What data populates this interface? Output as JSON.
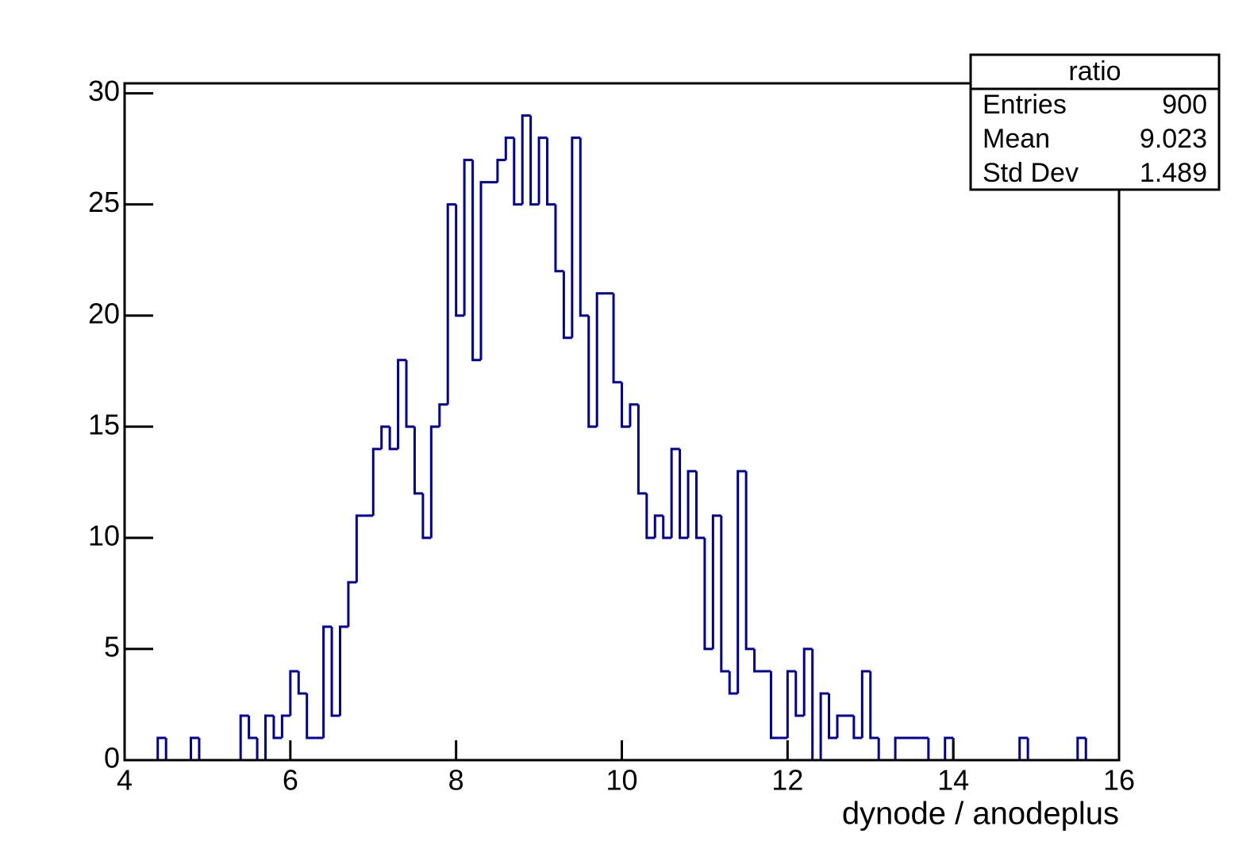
{
  "chart_data": {
    "type": "histogram",
    "x_label": "dynode / anodeplus",
    "color": "#000099",
    "bins": [
      4.0,
      4.1,
      4.2,
      4.3,
      4.4,
      4.5,
      4.6,
      4.7,
      4.8,
      4.9,
      5.0,
      5.1,
      5.2,
      5.3,
      5.4,
      5.5,
      5.6,
      5.7,
      5.8,
      5.9,
      6.0,
      6.1,
      6.2,
      6.3,
      6.4,
      6.5,
      6.6,
      6.7,
      6.8,
      6.9,
      7.0,
      7.1,
      7.2,
      7.3,
      7.4,
      7.5,
      7.6,
      7.7,
      7.8,
      7.9,
      8.0,
      8.1,
      8.2,
      8.3,
      8.4,
      8.5,
      8.6,
      8.7,
      8.8,
      8.9,
      9.0,
      9.1,
      9.2,
      9.3,
      9.4,
      9.5,
      9.6,
      9.7,
      9.8,
      9.9,
      10.0,
      10.1,
      10.2,
      10.3,
      10.4,
      10.5,
      10.6,
      10.7,
      10.8,
      10.9,
      11.0,
      11.1,
      11.2,
      11.3,
      11.4,
      11.5,
      11.6,
      11.7,
      11.8,
      11.9,
      12.0,
      12.1,
      12.2,
      12.3,
      12.4,
      12.5,
      12.6,
      12.7,
      12.8,
      12.9,
      13.0,
      13.1,
      13.2,
      13.3,
      13.4,
      13.5,
      13.6,
      13.7,
      13.8,
      13.9,
      14.0,
      14.1,
      14.2,
      14.3,
      14.4,
      14.5,
      14.6,
      14.7,
      14.8,
      14.9,
      15.0,
      15.1,
      15.2,
      15.3,
      15.4,
      15.5,
      15.6,
      15.7,
      15.8,
      15.9,
      16.0
    ],
    "values": [
      0,
      0,
      0,
      0,
      1,
      0,
      0,
      0,
      1,
      0,
      0,
      0,
      0,
      0,
      2,
      1,
      0,
      2,
      1,
      2,
      4,
      3,
      1,
      1,
      6,
      2,
      6,
      8,
      11,
      11,
      14,
      15,
      14,
      18,
      15,
      12,
      10,
      15,
      16,
      25,
      20,
      27,
      18,
      26,
      26,
      27,
      28,
      25,
      29,
      25,
      28,
      25,
      22,
      19,
      28,
      20,
      15,
      21,
      21,
      17,
      15,
      16,
      12,
      10,
      11,
      10,
      14,
      10,
      13,
      10,
      5,
      11,
      4,
      3,
      13,
      5,
      4,
      4,
      1,
      1,
      4,
      2,
      5,
      0,
      3,
      1,
      2,
      2,
      1,
      4,
      1,
      0,
      0,
      1,
      1,
      1,
      1,
      0,
      0,
      1,
      0,
      0,
      0,
      0,
      0,
      0,
      0,
      0,
      1,
      0,
      0,
      0,
      0,
      0,
      0,
      1,
      0,
      0,
      0,
      0
    ],
    "xlim": [
      4,
      16
    ],
    "xticks": [
      4,
      6,
      8,
      10,
      12,
      14,
      16
    ],
    "ylim": [
      0,
      30.45
    ],
    "yticks": [
      0,
      5,
      10,
      15,
      20,
      25,
      30
    ],
    "stats": {
      "title": "ratio",
      "rows": [
        [
          "Entries",
          "900"
        ],
        [
          "Mean",
          "9.023"
        ],
        [
          "Std Dev",
          "1.489"
        ]
      ]
    }
  }
}
